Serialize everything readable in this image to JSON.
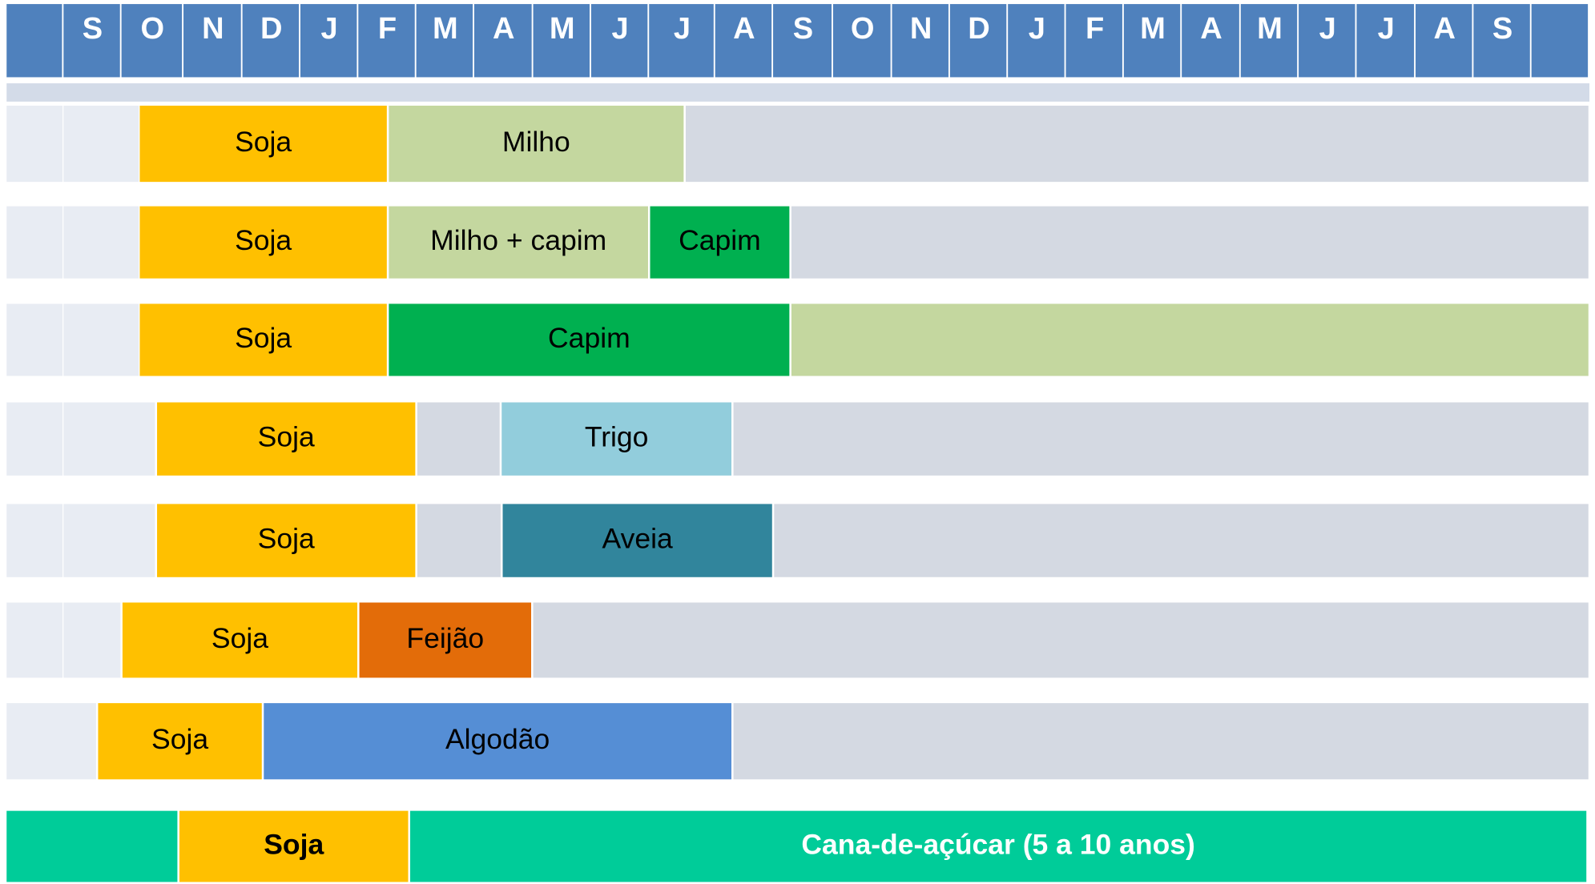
{
  "header": {
    "months": [
      "S",
      "O",
      "N",
      "D",
      "J",
      "F",
      "M",
      "A",
      "M",
      "J",
      "J",
      "A",
      "S",
      "O",
      "N",
      "D",
      "J",
      "F",
      "M",
      "A",
      "M",
      "J",
      "J",
      "A",
      "S"
    ]
  },
  "rows": [
    {
      "segments": [
        {
          "label": "Soja"
        },
        {
          "label": "Milho"
        }
      ]
    },
    {
      "segments": [
        {
          "label": "Soja"
        },
        {
          "label": "Milho + capim"
        },
        {
          "label": "Capim"
        }
      ]
    },
    {
      "segments": [
        {
          "label": "Soja"
        },
        {
          "label": "Capim"
        }
      ]
    },
    {
      "segments": [
        {
          "label": "Soja"
        },
        {
          "label": "Trigo"
        }
      ]
    },
    {
      "segments": [
        {
          "label": "Soja"
        },
        {
          "label": "Aveia"
        }
      ]
    },
    {
      "segments": [
        {
          "label": "Soja"
        },
        {
          "label": "Feijão"
        }
      ]
    },
    {
      "segments": [
        {
          "label": "Soja"
        },
        {
          "label": "Algodão"
        }
      ]
    },
    {
      "segments": [
        {
          "label": "Soja"
        },
        {
          "label": "Cana-de-açúcar (5 a 10 anos)"
        }
      ]
    }
  ]
}
